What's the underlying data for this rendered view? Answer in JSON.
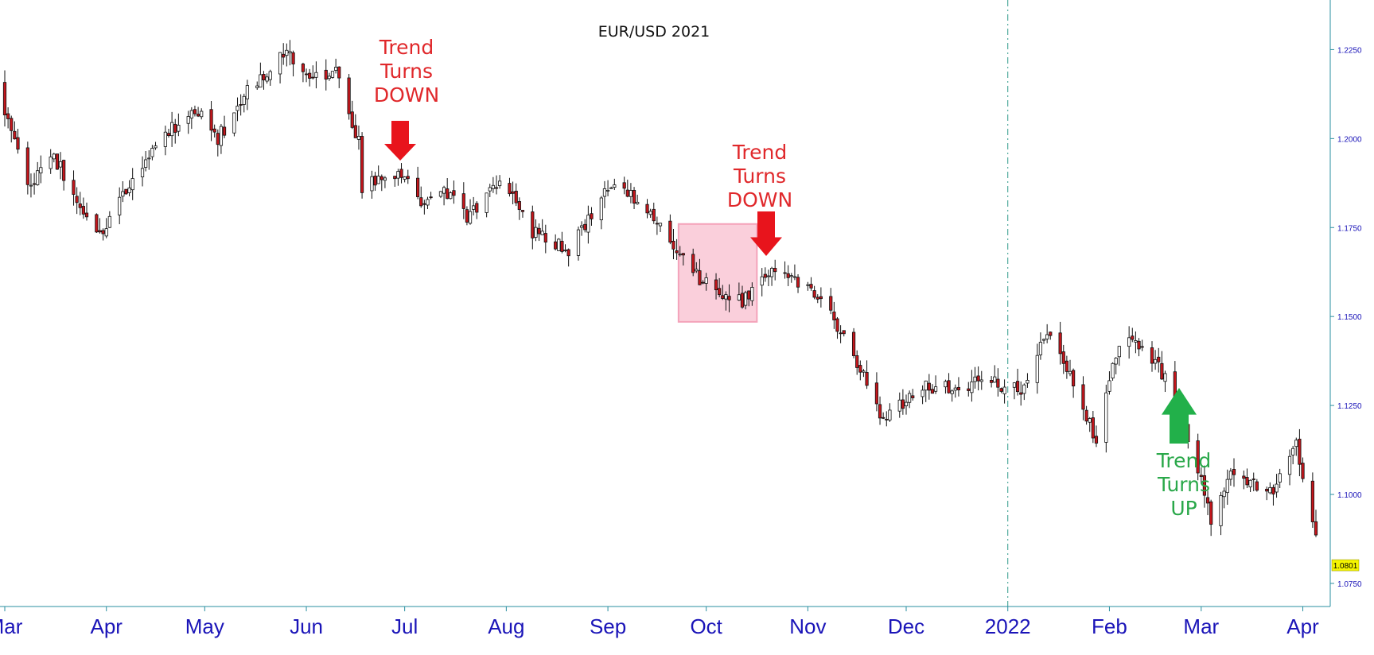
{
  "chart_data": {
    "type": "candlestick",
    "title": "EUR/USD 2021",
    "x_tick_labels": [
      "Mar",
      "Apr",
      "May",
      "Jun",
      "Jul",
      "Aug",
      "Sep",
      "Oct",
      "Nov",
      "Dec",
      "2022",
      "Feb",
      "Mar",
      "Apr"
    ],
    "y_tick_labels": [
      "1.2250",
      "1.2000",
      "1.1750",
      "1.1500",
      "1.1250",
      "1.1000",
      "1.0750"
    ],
    "y_ticks": [
      1.225,
      1.2,
      1.175,
      1.15,
      1.125,
      1.1,
      1.075
    ],
    "ylim": [
      1.0685,
      1.2385
    ],
    "last_price_label": "1.0801",
    "last_price": 1.0801,
    "colors": {
      "up": "#ffffff",
      "down": "#c4161c",
      "axis": "#1a14b8",
      "red_arrow": "#e8141c",
      "green_arrow": "#22b04a",
      "highlight": "#f7b6c8"
    },
    "trend_points": [
      [
        "2021-02-25",
        1.218
      ],
      [
        "2021-03-02",
        1.205
      ],
      [
        "2021-03-08",
        1.186
      ],
      [
        "2021-03-16",
        1.195
      ],
      [
        "2021-03-24",
        1.182
      ],
      [
        "2021-03-31",
        1.173
      ],
      [
        "2021-04-09",
        1.19
      ],
      [
        "2021-04-20",
        1.202
      ],
      [
        "2021-04-30",
        1.208
      ],
      [
        "2021-05-05",
        1.2
      ],
      [
        "2021-05-14",
        1.213
      ],
      [
        "2021-05-25",
        1.224
      ],
      [
        "2021-06-02",
        1.218
      ],
      [
        "2021-06-10",
        1.219
      ],
      [
        "2021-06-17",
        1.199
      ],
      [
        "2021-06-18",
        1.186
      ],
      [
        "2021-06-29",
        1.191
      ],
      [
        "2021-07-07",
        1.18
      ],
      [
        "2021-07-12",
        1.187
      ],
      [
        "2021-07-20",
        1.178
      ],
      [
        "2021-07-30",
        1.189
      ],
      [
        "2021-08-09",
        1.174
      ],
      [
        "2021-08-20",
        1.169
      ],
      [
        "2021-09-03",
        1.188
      ],
      [
        "2021-09-10",
        1.182
      ],
      [
        "2021-09-20",
        1.172
      ],
      [
        "2021-09-29",
        1.16
      ],
      [
        "2021-10-12",
        1.154
      ],
      [
        "2021-10-22",
        1.164
      ],
      [
        "2021-11-02",
        1.158
      ],
      [
        "2021-11-12",
        1.145
      ],
      [
        "2021-11-24",
        1.121
      ],
      [
        "2021-12-06",
        1.13
      ],
      [
        "2021-12-16",
        1.13
      ],
      [
        "2021-12-23",
        1.132
      ],
      [
        "2022-01-05",
        1.13
      ],
      [
        "2022-01-13",
        1.146
      ],
      [
        "2022-01-21",
        1.132
      ],
      [
        "2022-01-28",
        1.115
      ],
      [
        "2022-02-04",
        1.143
      ],
      [
        "2022-02-10",
        1.142
      ],
      [
        "2022-02-16",
        1.136
      ],
      [
        "2022-02-24",
        1.12
      ],
      [
        "2022-03-04",
        1.093
      ],
      [
        "2022-03-10",
        1.105
      ],
      [
        "2022-03-16",
        1.104
      ],
      [
        "2022-03-23",
        1.1
      ],
      [
        "2022-03-30",
        1.115
      ],
      [
        "2022-04-01",
        1.105
      ],
      [
        "2022-04-05",
        1.09
      ]
    ],
    "annotations": [
      {
        "lines": [
          "Trend",
          "Turns",
          "DOWN"
        ],
        "color": "red",
        "arrow": "down",
        "date": "2021-06-28"
      },
      {
        "lines": [
          "Trend",
          "Turns",
          "DOWN"
        ],
        "color": "red",
        "arrow": "down",
        "date": "2021-10-19"
      },
      {
        "lines": [
          "Trend",
          "Turns",
          "UP"
        ],
        "color": "green",
        "arrow": "up",
        "date": "2022-02-18"
      }
    ],
    "highlight_range": {
      "from": "2021-09-24",
      "to": "2021-10-15",
      "low": 1.1485,
      "high": 1.176
    },
    "vertical_line_date": "2022-01-01",
    "grid": false
  }
}
